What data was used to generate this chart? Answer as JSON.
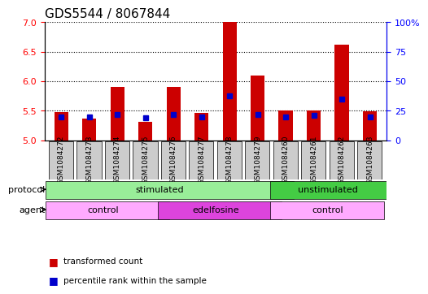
{
  "title": "GDS5544 / 8067844",
  "samples": [
    "GSM1084272",
    "GSM1084273",
    "GSM1084274",
    "GSM1084275",
    "GSM1084276",
    "GSM1084277",
    "GSM1084278",
    "GSM1084279",
    "GSM1084260",
    "GSM1084261",
    "GSM1084262",
    "GSM1084263"
  ],
  "transformed_count": [
    5.48,
    5.37,
    5.9,
    5.32,
    5.9,
    5.46,
    7.0,
    6.1,
    5.5,
    5.5,
    6.62,
    5.49
  ],
  "percentile_rank": [
    20,
    20,
    22,
    19,
    22,
    20,
    38,
    22,
    20,
    21,
    35,
    20
  ],
  "y_min": 5.0,
  "y_max": 7.0,
  "y_ticks": [
    5.0,
    5.5,
    6.0,
    6.5,
    7.0
  ],
  "y2_ticks": [
    0,
    25,
    50,
    75,
    100
  ],
  "bar_color": "#cc0000",
  "dot_color": "#0000cc",
  "protocol_stimulated": {
    "label": "stimulated",
    "start": 0,
    "end": 8,
    "color": "#99ee99"
  },
  "protocol_unstimulated": {
    "label": "unstimulated",
    "start": 8,
    "end": 12,
    "color": "#44cc44"
  },
  "agent_control1": {
    "label": "control",
    "start": 0,
    "end": 4,
    "color": "#ffaaff"
  },
  "agent_edelfosine": {
    "label": "edelfosine",
    "start": 4,
    "end": 8,
    "color": "#dd44dd"
  },
  "agent_control2": {
    "label": "control",
    "start": 8,
    "end": 12,
    "color": "#ffaaff"
  },
  "legend_red": "transformed count",
  "legend_blue": "percentile rank within the sample",
  "protocol_label": "protocol",
  "agent_label": "agent",
  "bg_color": "#ffffff",
  "label_area_color": "#dddddd",
  "title_fontsize": 11,
  "tick_fontsize": 9,
  "bar_width": 0.5
}
